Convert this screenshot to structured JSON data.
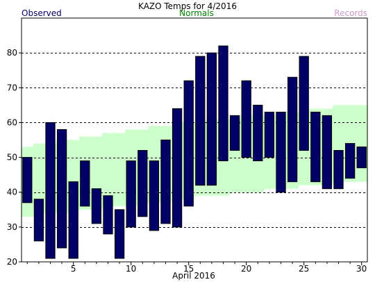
{
  "chart_data": {
    "type": "bar",
    "title": "KAZO Temps for 4/2016",
    "xlabel": "April 2016",
    "ylabel": "",
    "legend": [
      {
        "label": "Observed",
        "color": "#000066"
      },
      {
        "label": "Normals",
        "color": "#008000"
      },
      {
        "label": "Records",
        "color": "#cc99cc"
      }
    ],
    "xlim": [
      0.5,
      30.5
    ],
    "ylim": [
      20,
      90
    ],
    "x_ticks": [
      5,
      10,
      15,
      20,
      25,
      30
    ],
    "y_ticks": [
      20,
      30,
      40,
      50,
      60,
      70,
      80
    ],
    "grid_y": [
      30,
      40,
      50,
      60,
      70,
      80
    ],
    "days": [
      1,
      2,
      3,
      4,
      5,
      6,
      7,
      8,
      9,
      10,
      11,
      12,
      13,
      14,
      15,
      16,
      17,
      18,
      19,
      20,
      21,
      22,
      23,
      24,
      25,
      26,
      27,
      28,
      29,
      30
    ],
    "series": [
      {
        "name": "Observed",
        "color": "#000066",
        "high": [
          50,
          38,
          60,
          58,
          43,
          49,
          41,
          39,
          35,
          49,
          52,
          49,
          55,
          64,
          72,
          79,
          80,
          82,
          62,
          72,
          65,
          63,
          63,
          73,
          79,
          63,
          62,
          52,
          54,
          53
        ],
        "low": [
          37,
          26,
          21,
          24,
          21,
          36,
          31,
          28,
          21,
          30,
          33,
          29,
          31,
          30,
          36,
          42,
          42,
          49,
          52,
          50,
          49,
          50,
          40,
          43,
          52,
          43,
          41,
          41,
          44,
          47
        ]
      },
      {
        "name": "Normals",
        "color": "#ccffcc",
        "high": [
          53,
          54,
          54,
          55,
          55,
          56,
          56,
          57,
          57,
          58,
          58,
          59,
          59,
          60,
          60,
          60,
          61,
          61,
          61,
          62,
          62,
          62,
          63,
          63,
          63,
          64,
          64,
          65,
          65,
          65
        ],
        "low": [
          33,
          34,
          34,
          34,
          35,
          35,
          35,
          36,
          36,
          36,
          37,
          37,
          37,
          38,
          38,
          39,
          39,
          39,
          40,
          40,
          40,
          41,
          41,
          41,
          42,
          42,
          42,
          43,
          43,
          43
        ]
      }
    ]
  }
}
